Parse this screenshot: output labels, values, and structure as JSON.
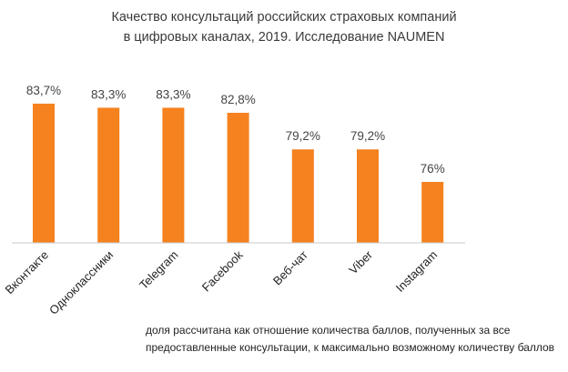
{
  "chart_data": {
    "type": "bar",
    "title_lines": [
      "Качество консультаций российских страховых компаний",
      "в цифровых каналах, 2019. Исследование NAUMEN"
    ],
    "categories": [
      "Вконтакте",
      "Одноклассники",
      "Telegram",
      "Facebook",
      "Веб-чат",
      "Viber",
      "Instagram"
    ],
    "values": [
      83.7,
      83.3,
      83.3,
      82.8,
      79.2,
      79.2,
      76
    ],
    "data_labels": [
      "83,7%",
      "83,3%",
      "83,3%",
      "82,8%",
      "79,2%",
      "79,2%",
      "76%"
    ],
    "xlabel": "",
    "ylabel": "",
    "ylim": [
      70,
      85
    ],
    "grid": false,
    "bar_color": "#f5821f",
    "axis_color": "#c8c8c8",
    "footnote_lines": [
      "доля рассчитана как отношение количества баллов, полученных за все",
      "предоставленные консультации, к максимально возможному количеству баллов"
    ]
  }
}
